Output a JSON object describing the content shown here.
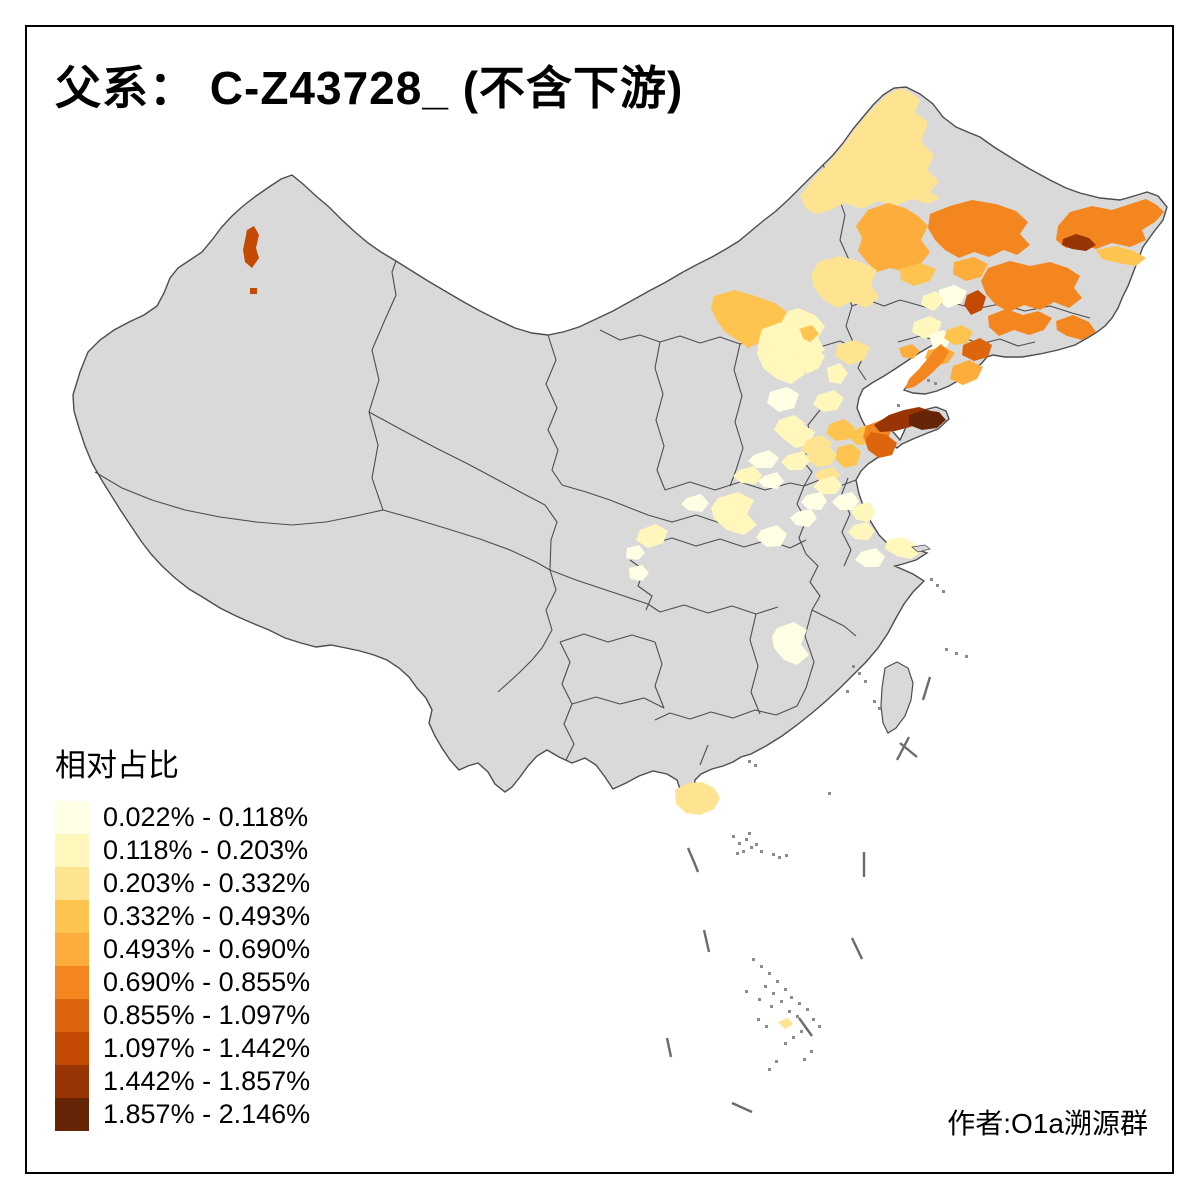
{
  "title": "父系： C-Z43728_ (不含下游)",
  "legend": {
    "title": "相对占比",
    "classes": [
      {
        "label": "0.022% - 0.118%",
        "color": "#FFFFE5"
      },
      {
        "label": "0.118% - 0.203%",
        "color": "#FFF7BC"
      },
      {
        "label": "0.203% - 0.332%",
        "color": "#FEE391"
      },
      {
        "label": "0.332% - 0.493%",
        "color": "#FEC44F"
      },
      {
        "label": "0.493% - 0.690%",
        "color": "#FDAD3C"
      },
      {
        "label": "0.690% - 0.855%",
        "color": "#F4861F"
      },
      {
        "label": "0.855% - 1.097%",
        "color": "#DD650E"
      },
      {
        "label": "1.097% - 1.442%",
        "color": "#C44A03"
      },
      {
        "label": "1.442% - 1.857%",
        "color": "#993404"
      },
      {
        "label": "1.857% - 2.146%",
        "color": "#662506"
      }
    ]
  },
  "attribution": "作者:O1a溯源群",
  "map": {
    "no_data_color": "#D9D9D9",
    "sea_color": "#FFFFFF",
    "boundary_color": "#4D4D4D",
    "frame_color": "#000000"
  },
  "chart_data": {
    "type": "choropleth",
    "title": "父系： C-Z43728_ (不含下游)",
    "legend_title": "相对占比",
    "legend_position": "bottom-left",
    "no_data_color": "#D9D9D9",
    "notable_areas": [
      {
        "area": "shandong-peninsula-east-tip",
        "range": "1.857% - 2.146%"
      },
      {
        "area": "shandong-peninsula-north",
        "range": "1.442% - 1.857%"
      },
      {
        "area": "qingdao-coast",
        "range": "0.855% - 1.097%"
      },
      {
        "area": "east-heilongjiang-spot",
        "range": "1.442% - 1.857%"
      },
      {
        "area": "central-jilin-spot",
        "range": "1.097% - 1.442%"
      },
      {
        "area": "northeast-china-cluster",
        "range": "0.493% - 0.855%"
      },
      {
        "area": "liaodong-peninsula",
        "range": "0.690% - 0.855%"
      },
      {
        "area": "north-xinjiang-spot",
        "range": "1.097% - 1.442%"
      },
      {
        "area": "hulunbuir-northeast-inner-mongolia",
        "range": "0.203% - 0.332%"
      },
      {
        "area": "hebei-henan-jiangsu-scattered",
        "range": "0.022% - 0.203%"
      },
      {
        "area": "hainan-island",
        "range": "0.203% - 0.332%"
      }
    ]
  }
}
